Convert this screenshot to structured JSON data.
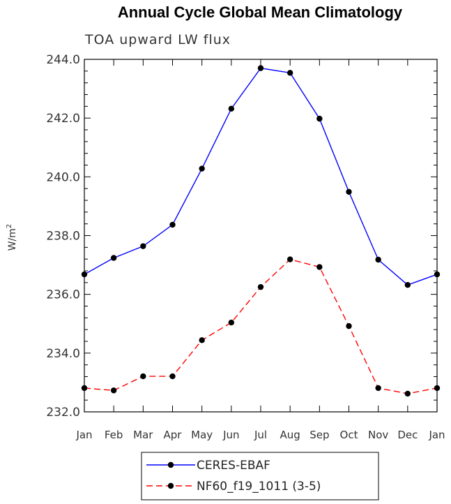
{
  "chart_data": {
    "type": "line",
    "title": "Annual Cycle Global Mean Climatology",
    "subtitle": "TOA upward LW flux",
    "ylabel": "W/m",
    "ylabel_sup": "2",
    "xlabel": "",
    "categories": [
      "Jan",
      "Feb",
      "Mar",
      "Apr",
      "May",
      "Jun",
      "Jul",
      "Aug",
      "Sep",
      "Oct",
      "Nov",
      "Dec",
      "Jan"
    ],
    "ylim": [
      232.0,
      244.0
    ],
    "yticks": [
      "232.0",
      "234.0",
      "236.0",
      "238.0",
      "240.0",
      "242.0",
      "244.0"
    ],
    "series": [
      {
        "name": "CERES-EBAF",
        "color": "#0000ff",
        "style": "solid",
        "values": [
          236.68,
          237.24,
          237.64,
          238.37,
          240.28,
          242.32,
          243.7,
          243.54,
          241.98,
          239.49,
          237.18,
          236.32,
          236.68
        ]
      },
      {
        "name": "NF60_f19_1011 (3-5)",
        "color": "#ff0000",
        "style": "dashed",
        "values": [
          232.81,
          232.73,
          233.21,
          233.21,
          234.44,
          235.04,
          236.25,
          237.19,
          236.93,
          234.92,
          232.81,
          232.62,
          232.81
        ]
      }
    ],
    "legend_position": "bottom-center",
    "grid": false
  }
}
